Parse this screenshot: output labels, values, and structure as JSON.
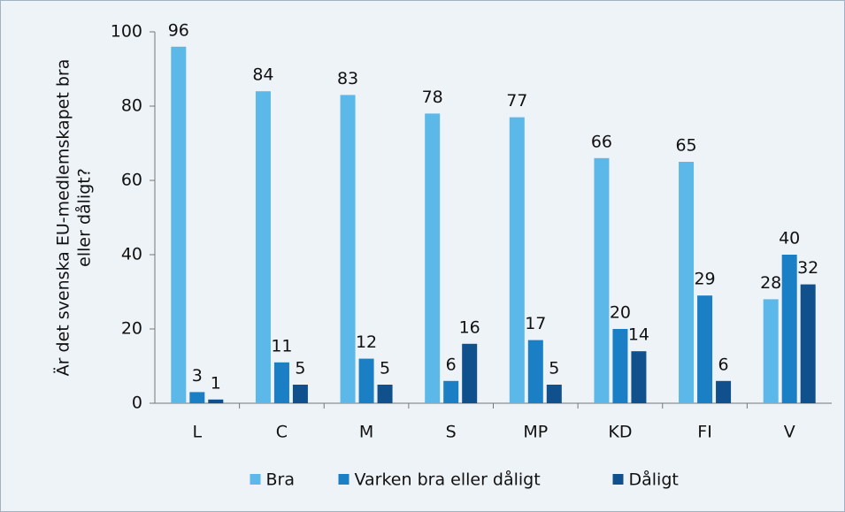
{
  "chart_data": {
    "type": "bar",
    "ylabel": [
      "Är det svenska EU-medlemskapet bra",
      "eller dåligt?"
    ],
    "categories": [
      "L",
      "C",
      "M",
      "S",
      "MP",
      "KD",
      "FI",
      "V"
    ],
    "series": [
      {
        "name": "Bra",
        "color": "#5bb8e8",
        "values": [
          96,
          84,
          83,
          78,
          77,
          66,
          65,
          28
        ]
      },
      {
        "name": "Varken bra eller dåligt",
        "color": "#1a7fc4",
        "values": [
          3,
          11,
          12,
          6,
          17,
          20,
          29,
          40
        ]
      },
      {
        "name": "Dåligt",
        "color": "#10508c",
        "values": [
          1,
          5,
          5,
          16,
          5,
          14,
          6,
          32
        ]
      }
    ],
    "ylim": [
      0,
      100
    ],
    "yticks": [
      0,
      20,
      40,
      60,
      80,
      100
    ],
    "grid": false,
    "legend": "bottom"
  }
}
